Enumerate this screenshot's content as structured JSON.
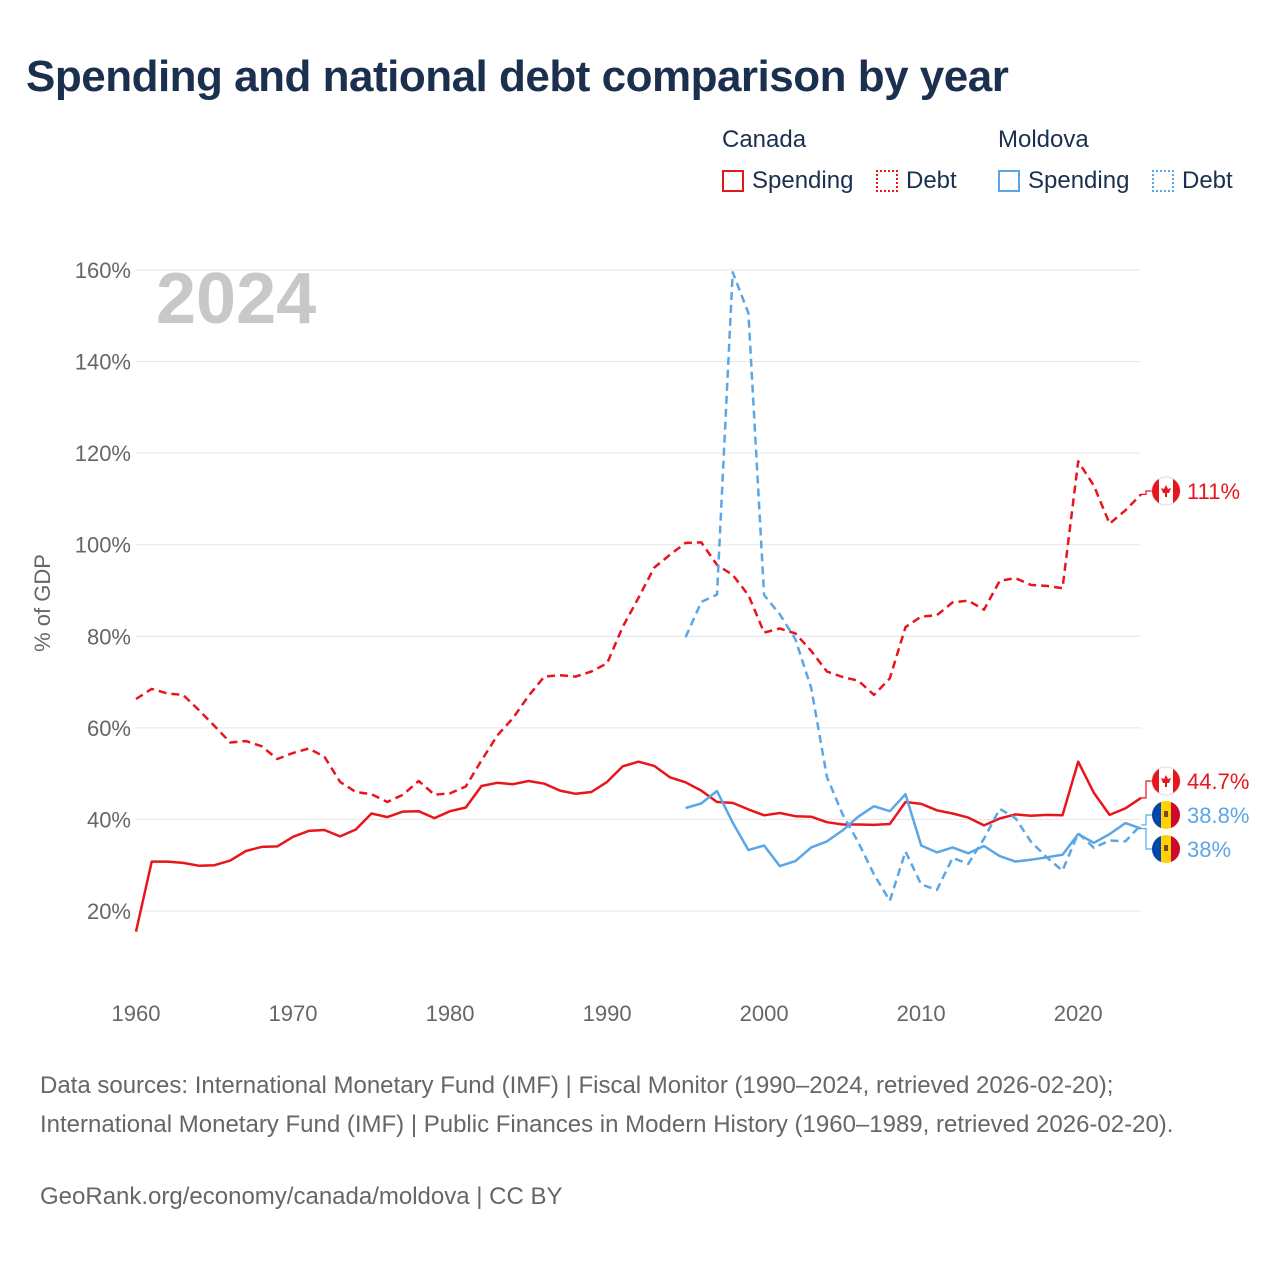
{
  "title": "Spending and national debt comparison by year",
  "legend": {
    "groups": [
      {
        "country": "Canada",
        "color": "#e8161c",
        "items": [
          {
            "label": "Spending",
            "style": "solid"
          },
          {
            "label": "Debt",
            "style": "dotted"
          }
        ]
      },
      {
        "country": "Moldova",
        "color": "#5ba6e6",
        "items": [
          {
            "label": "Spending",
            "style": "solid"
          },
          {
            "label": "Debt",
            "style": "dotted"
          }
        ]
      }
    ]
  },
  "colors": {
    "canada": "#e8161c",
    "moldova": "#5ba6e6",
    "grid": "#e6e6e6",
    "axis_text": "#666666",
    "year_watermark": "#c8c8c8",
    "title": "#1b2f4f"
  },
  "chart_data": {
    "type": "line",
    "title": "Spending and national debt comparison by year",
    "ylabel": "% of GDP",
    "xlabel": "",
    "year_label": "2024",
    "xlim": [
      1960,
      2024
    ],
    "ylim": [
      10,
      160
    ],
    "x_ticks": [
      1960,
      1970,
      1980,
      1990,
      2000,
      2010,
      2020
    ],
    "y_ticks": [
      20,
      40,
      60,
      80,
      100,
      120,
      140,
      160
    ],
    "y_tick_labels": [
      "20%",
      "40%",
      "60%",
      "80%",
      "100%",
      "120%",
      "140%",
      "160%"
    ],
    "series": [
      {
        "name": "Canada Spending",
        "country": "Canada",
        "measure": "Spending",
        "color": "#e8161c",
        "dash": "solid",
        "start_year": 1960,
        "values": [
          15.5,
          30.8,
          30.8,
          30.5,
          29.9,
          30.0,
          31.0,
          33.1,
          34.0,
          34.1,
          36.2,
          37.5,
          37.7,
          36.3,
          37.8,
          41.3,
          40.5,
          41.7,
          41.8,
          40.3,
          41.8,
          42.6,
          47.3,
          48.0,
          47.7,
          48.4,
          47.8,
          46.3,
          45.6,
          46.0,
          48.2,
          51.6,
          52.6,
          51.7,
          49.2,
          48.1,
          46.3,
          43.8,
          43.6,
          42.2,
          40.9,
          41.4,
          40.7,
          40.6,
          39.4,
          38.9,
          38.9,
          38.8,
          39.0,
          43.8,
          43.4,
          42.0,
          41.3,
          40.4,
          38.7,
          40.2,
          41.1,
          40.8,
          41.0,
          40.9,
          52.6,
          45.8,
          41.0,
          42.4,
          44.7
        ],
        "end_label": "44.7%"
      },
      {
        "name": "Canada Debt",
        "country": "Canada",
        "measure": "Debt",
        "color": "#e8161c",
        "dash": "dashed",
        "start_year": 1960,
        "values": [
          66.3,
          68.5,
          67.5,
          67.2,
          63.9,
          60.4,
          56.8,
          57.1,
          56.0,
          53.2,
          54.5,
          55.5,
          53.7,
          48.2,
          46.0,
          45.5,
          43.8,
          45.4,
          48.4,
          45.4,
          45.7,
          47.2,
          52.9,
          58.3,
          62.1,
          67.0,
          71.2,
          71.5,
          71.2,
          72.3,
          74.1,
          82.1,
          88.4,
          95.0,
          97.8,
          100.4,
          100.5,
          95.6,
          93.4,
          89.0,
          80.8,
          81.7,
          80.6,
          76.8,
          72.3,
          71.1,
          70.3,
          67.2,
          70.8,
          82.0,
          84.3,
          84.6,
          87.4,
          87.8,
          85.8,
          92.1,
          92.7,
          91.2,
          91.0,
          90.5,
          118.2,
          112.9,
          104.6,
          107.5,
          111.0
        ],
        "end_label": "111%"
      },
      {
        "name": "Moldova Spending",
        "country": "Moldova",
        "measure": "Spending",
        "color": "#5ba6e6",
        "dash": "solid",
        "start_year": 1995,
        "values": [
          42.5,
          43.5,
          46.2,
          39.3,
          33.3,
          34.3,
          29.8,
          30.9,
          33.9,
          35.2,
          37.6,
          40.6,
          42.9,
          41.8,
          45.5,
          34.3,
          32.8,
          33.9,
          32.6,
          34.2,
          32.0,
          30.8,
          31.2,
          31.7,
          32.3,
          36.8,
          34.9,
          36.8,
          39.2,
          38.0
        ],
        "end_label": "38%"
      },
      {
        "name": "Moldova Debt",
        "country": "Moldova",
        "measure": "Debt",
        "color": "#5ba6e6",
        "dash": "dashed",
        "start_year": 1995,
        "values": [
          79.8,
          87.5,
          89.1,
          159.5,
          150.6,
          89.0,
          84.8,
          79.3,
          68.7,
          49.3,
          41.1,
          35.0,
          28.0,
          22.2,
          33.0,
          25.8,
          24.6,
          31.6,
          30.3,
          35.8,
          42.3,
          40.3,
          35.1,
          31.7,
          28.8,
          37.0,
          33.8,
          35.4,
          35.2,
          38.8
        ],
        "end_label": "38.8%"
      }
    ]
  },
  "sources_text": "Data sources: International Monetary Fund (IMF) | Fiscal Monitor (1990–2024, retrieved 2026-02-20); International Monetary Fund (IMF) | Public Finances in Modern History (1960–1989, retrieved 2026-02-20).",
  "credit": "GeoRank.org/economy/canada/moldova | CC BY"
}
